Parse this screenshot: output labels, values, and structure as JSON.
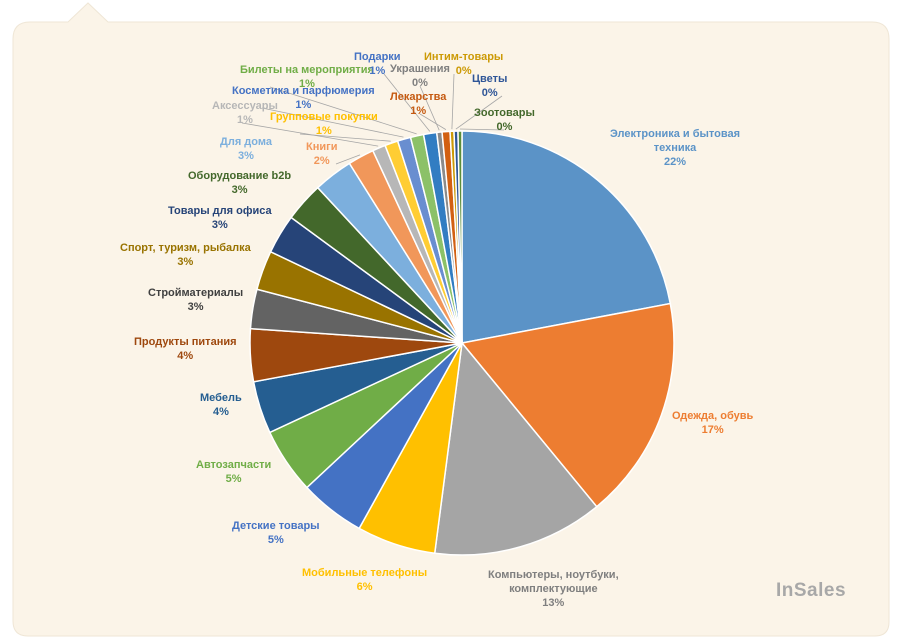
{
  "brand": "InSales",
  "chart_data": {
    "type": "pie",
    "slices": [
      {
        "name": "Электроника и бытовая техника",
        "value": 22,
        "label": "22%",
        "color": "#5b93c7"
      },
      {
        "name": "Одежда, обувь",
        "value": 17,
        "label": "17%",
        "color": "#ed7d31"
      },
      {
        "name": "Компьютеры, ноутбуки, комплектующие",
        "value": 13,
        "label": "13%",
        "color": "#a5a5a5"
      },
      {
        "name": "Мобильные телефоны",
        "value": 6,
        "label": "6%",
        "color": "#ffc000"
      },
      {
        "name": "Детские товары",
        "value": 5,
        "label": "5%",
        "color": "#4472c4"
      },
      {
        "name": "Автозапчасти",
        "value": 5,
        "label": "5%",
        "color": "#70ad47"
      },
      {
        "name": "Мебель",
        "value": 4,
        "label": "4%",
        "color": "#255e91"
      },
      {
        "name": "Продукты питания",
        "value": 4,
        "label": "4%",
        "color": "#9e480e"
      },
      {
        "name": "Стройматериалы",
        "value": 3,
        "label": "3%",
        "color": "#636363"
      },
      {
        "name": "Спорт, туризм, рыбалка",
        "value": 3,
        "label": "3%",
        "color": "#997300"
      },
      {
        "name": "Товары для офиса",
        "value": 3,
        "label": "3%",
        "color": "#264478"
      },
      {
        "name": "Оборудование b2b",
        "value": 3,
        "label": "3%",
        "color": "#43682b"
      },
      {
        "name": "Для дома",
        "value": 3,
        "label": "3%",
        "color": "#7cafdd"
      },
      {
        "name": "Книги",
        "value": 2,
        "label": "2%",
        "color": "#f1975a"
      },
      {
        "name": "Аксессуары",
        "value": 1,
        "label": "1%",
        "color": "#b7b7b7"
      },
      {
        "name": "Групповые покупки",
        "value": 1,
        "label": "1%",
        "color": "#ffcd33"
      },
      {
        "name": "Косметика и парфюмерия",
        "value": 1,
        "label": "1%",
        "color": "#698ed0"
      },
      {
        "name": "Билеты на мероприятия",
        "value": 1,
        "label": "1%",
        "color": "#8cc168"
      },
      {
        "name": "Подарки",
        "value": 1,
        "label": "1%",
        "color": "#327dc2"
      },
      {
        "name": "Украшения",
        "value": 0.4,
        "label": "0%",
        "color": "#8b8b8b"
      },
      {
        "name": "Лекарства",
        "value": 0.6,
        "label": "1%",
        "color": "#d26012"
      },
      {
        "name": "Интим-товары",
        "value": 0.3,
        "label": "0%",
        "color": "#cc9a06"
      },
      {
        "name": "Цветы",
        "value": 0.3,
        "label": "0%",
        "color": "#2e5597"
      },
      {
        "name": "Зоотовары",
        "value": 0.3,
        "label": "0%",
        "color": "#5b8e3a"
      }
    ],
    "label_colors": [
      "#5b93c7",
      "#ed7d31",
      "#7f7f7f",
      "#ffc000",
      "#4472c4",
      "#70ad47",
      "#255e91",
      "#9e480e",
      "#404040",
      "#997300",
      "#264478",
      "#43682b",
      "#7cafdd",
      "#f1975a",
      "#b7b7b7",
      "#ffc000",
      "#4472c4",
      "#70ad47",
      "#4472c4",
      "#7f7f7f",
      "#c55a11",
      "#cc9a06",
      "#2e5597",
      "#43682b"
    ]
  }
}
